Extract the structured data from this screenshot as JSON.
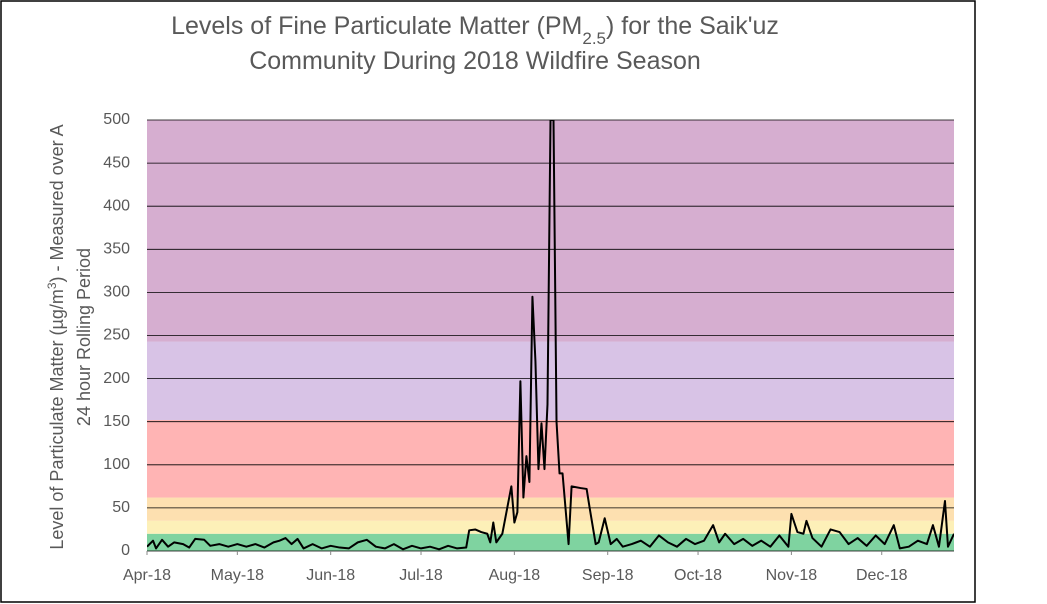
{
  "chart_data": {
    "type": "line",
    "title": {
      "line1": [
        "Levels of Fine Particulate Matter (PM",
        "2.5",
        ") for the Saik'uz"
      ],
      "line2": "Community During 2018 Wildfire Season"
    },
    "y_label": {
      "line1": [
        "Level of Particulate Matter (µg/m",
        "3",
        ") - Measured over A"
      ],
      "line2": "24 hour Rolling Period"
    },
    "x": [
      0,
      2,
      3,
      5,
      7,
      9,
      12,
      14,
      16,
      19,
      21,
      24,
      27,
      30,
      33,
      36,
      39,
      42,
      44,
      46,
      48,
      50,
      52,
      55,
      58,
      61,
      64,
      67,
      70,
      73,
      76,
      79,
      82,
      85,
      88,
      91,
      94,
      97,
      100,
      103,
      106,
      107,
      109,
      111,
      113,
      114,
      115,
      116,
      118,
      121,
      122,
      123,
      124,
      125,
      126,
      127,
      128,
      129,
      130,
      131,
      132,
      133,
      134,
      135,
      136,
      137,
      138,
      140,
      141,
      144,
      146,
      147,
      149,
      150,
      152,
      154,
      156,
      158,
      161,
      164,
      167,
      170,
      173,
      176,
      179,
      182,
      185,
      188,
      190,
      192,
      195,
      198,
      201,
      204,
      207,
      210,
      213,
      214,
      216,
      218,
      219,
      221,
      224,
      227,
      230,
      233,
      236,
      239,
      242,
      245,
      248,
      250,
      253,
      256,
      259,
      261,
      263,
      265,
      266,
      268
    ],
    "values": [
      5,
      12,
      3,
      13,
      5,
      10,
      8,
      4,
      14,
      13,
      6,
      8,
      5,
      8,
      5,
      8,
      4,
      10,
      12,
      15,
      8,
      14,
      3,
      8,
      3,
      6,
      4,
      3,
      10,
      13,
      5,
      3,
      8,
      2,
      6,
      3,
      5,
      2,
      6,
      3,
      4,
      24,
      25,
      22,
      20,
      10,
      33,
      10,
      20,
      75,
      33,
      45,
      197,
      62,
      110,
      80,
      295,
      220,
      95,
      148,
      95,
      170,
      500,
      500,
      150,
      90,
      90,
      8,
      75,
      73,
      72,
      50,
      8,
      10,
      38,
      8,
      14,
      5,
      8,
      12,
      5,
      18,
      10,
      5,
      14,
      8,
      12,
      30,
      10,
      20,
      8,
      14,
      6,
      12,
      5,
      18,
      5,
      43,
      22,
      20,
      35,
      15,
      5,
      25,
      22,
      8,
      15,
      6,
      18,
      8,
      30,
      3,
      5,
      12,
      8,
      30,
      5,
      58,
      5,
      20
    ],
    "color": "#000000",
    "xlim": [
      0,
      268
    ],
    "xticks": [
      {
        "value": 0,
        "label": "Apr-18"
      },
      {
        "value": 30,
        "label": "May-18"
      },
      {
        "value": 61,
        "label": "Jun-18"
      },
      {
        "value": 91,
        "label": "Jul-18"
      },
      {
        "value": 122,
        "label": "Aug-18"
      },
      {
        "value": 153,
        "label": "Sep-18"
      },
      {
        "value": 183,
        "label": "Oct-18"
      },
      {
        "value": 214,
        "label": "Nov-18"
      },
      {
        "value": 244,
        "label": "Dec-18"
      }
    ],
    "ylim": [
      0,
      500
    ],
    "yticks": [
      0,
      50,
      100,
      150,
      200,
      250,
      300,
      350,
      400,
      450,
      500
    ],
    "grid": true,
    "bands": [
      {
        "from": 0,
        "to": 20,
        "color": "#7fd3a0"
      },
      {
        "from": 20,
        "to": 35,
        "color": "#fdf0b8"
      },
      {
        "from": 35,
        "to": 62,
        "color": "#fde0b0"
      },
      {
        "from": 62,
        "to": 152,
        "color": "#ffb4b4"
      },
      {
        "from": 152,
        "to": 243,
        "color": "#d8c3e6"
      },
      {
        "from": 243,
        "to": 500,
        "color": "#d6aed0"
      }
    ]
  }
}
